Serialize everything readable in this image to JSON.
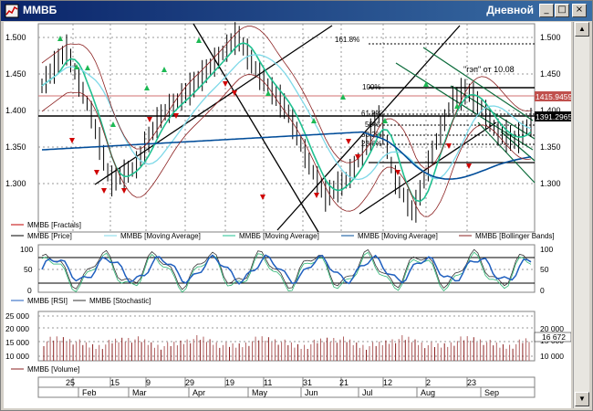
{
  "window": {
    "title": "ММВБ",
    "period": "Дневной",
    "buttons": {
      "minimize": "_",
      "maximize": "□",
      "close": "×"
    }
  },
  "price_axis": [
    "1.500",
    "1.450",
    "1.400",
    "1.350",
    "1.300"
  ],
  "price_axis_right": [
    "1.500",
    "1.450",
    "1.400",
    "1.350",
    "1.300"
  ],
  "price_tags": {
    "upper": "1415.94596",
    "lower": "1391.29651"
  },
  "fib_labels": [
    "161.8%",
    "100%",
    "61.8%",
    "50%",
    "38.2%",
    "23.6%"
  ],
  "annotation": "\"гэп\" от 10.08",
  "main_legend": [
    {
      "label": "ММВБ [Fractals]",
      "color": "#c00000"
    },
    {
      "label": "ММВБ [Price]",
      "color": "#000000"
    },
    {
      "label": "ММВБ [Moving Average]",
      "color": "#7fd9e8"
    },
    {
      "label": "ММВБ [Moving Average]",
      "color": "#20c090"
    },
    {
      "label": "ММВБ [Moving Average]",
      "color": "#004c99"
    },
    {
      "label": "ММВБ [Bollinger Bands]",
      "color": "#8b2020"
    }
  ],
  "osc_axis_left": [
    "100",
    "50",
    "0"
  ],
  "osc_axis_right": [
    "100",
    "50",
    "0"
  ],
  "osc_legend": [
    {
      "label": "ММВБ [RSI]",
      "color": "#1f5fbf"
    },
    {
      "label": "ММВБ [Stochastic]",
      "color": "#333333"
    }
  ],
  "vol_axis_left": [
    "25 000",
    "20 000",
    "15 000",
    "10 000"
  ],
  "vol_axis_right": [
    "20 000",
    "15 000",
    "10 000"
  ],
  "vol_tag": "16 672",
  "vol_legend": [
    {
      "label": "ММВБ [Volume]",
      "color": "#8b2020"
    }
  ],
  "time_axis_days": [
    "25",
    "15",
    "9",
    "29",
    "19",
    "11",
    "31",
    "21",
    "12",
    "2",
    "23"
  ],
  "time_axis_months": [
    "Feb",
    "Mar",
    "Apr",
    "May",
    "Jun",
    "Jul",
    "Aug",
    "Sep"
  ]
}
